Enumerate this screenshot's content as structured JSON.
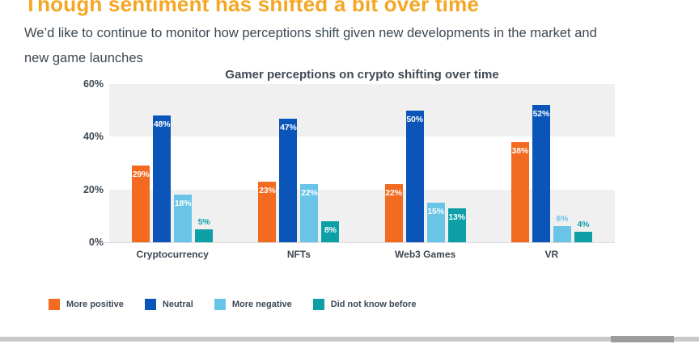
{
  "header": {
    "title": "Though sentiment has shifted a bit over time",
    "subtitle": "We’d like to continue to monitor how perceptions shift given new developments in the market and new game launches"
  },
  "chart_data": {
    "type": "bar",
    "title": "Gamer perceptions on crypto shifting over time",
    "categories": [
      "Cryptocurrency",
      "NFTs",
      "Web3 Games",
      "VR"
    ],
    "series": [
      {
        "name": "More positive",
        "color": "#F26B21",
        "values": [
          29,
          23,
          22,
          38
        ]
      },
      {
        "name": "Neutral",
        "color": "#0B55B8",
        "values": [
          48,
          47,
          50,
          52
        ]
      },
      {
        "name": "More negative",
        "color": "#69C4E8",
        "values": [
          18,
          22,
          15,
          6
        ]
      },
      {
        "name": "Did not know before",
        "color": "#0D9FA6",
        "values": [
          5,
          8,
          13,
          4
        ]
      }
    ],
    "value_suffix": "%",
    "ylim": [
      0,
      60
    ],
    "y_ticks": [
      "60%",
      "40%",
      "20%",
      "0%"
    ],
    "band_colors": [
      "#F0F0F0",
      "#FFFFFF",
      "#F0F0F0"
    ],
    "grid": "banded",
    "legend_position": "bottom"
  }
}
